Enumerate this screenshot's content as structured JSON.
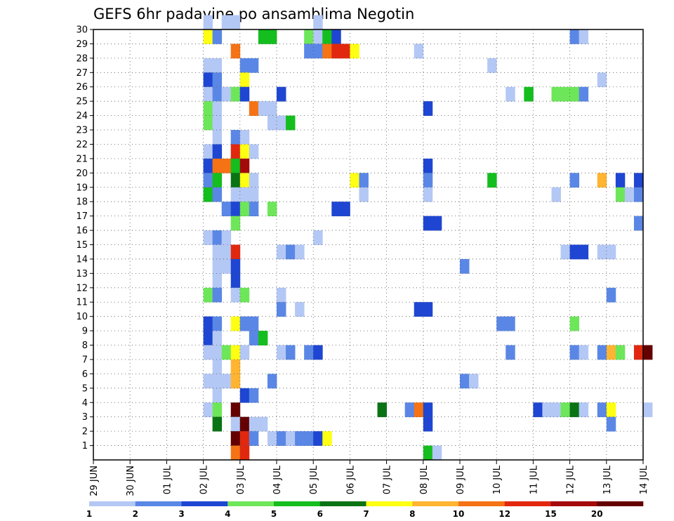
{
  "chart_data": {
    "type": "heatmap",
    "title": "GEFS 6hr padavine po ansamblima Negotin",
    "xlabel": "",
    "ylabel": "",
    "x_ticks": [
      "29 JUN",
      "30 JUN",
      "01 JUL",
      "02 JUL",
      "03 JUL",
      "04 JUL",
      "05 JUL",
      "06 JUL",
      "07 JUL",
      "08 JUL",
      "09 JUL",
      "10 JUL",
      "11 JUL",
      "12 JUL",
      "13 JUL",
      "14 JUL"
    ],
    "y_ticks": [
      "1",
      "2",
      "3",
      "4",
      "5",
      "6",
      "7",
      "8",
      "9",
      "10",
      "11",
      "12",
      "13",
      "14",
      "15",
      "16",
      "17",
      "18",
      "19",
      "20",
      "21",
      "22",
      "23",
      "24",
      "25",
      "26",
      "27",
      "28",
      "29",
      "30"
    ],
    "x_range": [
      "29 JUN 00Z",
      "14 JUL 00Z"
    ],
    "y_range": [
      0,
      30
    ],
    "time_step_hours": 6,
    "grid": true,
    "legend": {
      "position": "bottom",
      "levels": [
        "1",
        "2",
        "3",
        "4",
        "5",
        "6",
        "7",
        "8",
        "10",
        "12",
        "15",
        "20"
      ],
      "colors": [
        "#b4c8f5",
        "#5a87e6",
        "#1e46d2",
        "#6ee65a",
        "#14be1e",
        "#0a7314",
        "#ffff14",
        "#ffb432",
        "#f57314",
        "#e1280f",
        "#a50a0a",
        "#640000"
      ]
    },
    "cells": [
      [
        30,
        "02 JUL 00Z",
        1
      ],
      [
        30,
        "02 JUL 12Z",
        1
      ],
      [
        30,
        "02 JUL 18Z",
        1
      ],
      [
        30,
        "05 JUL 00Z",
        1
      ],
      [
        29,
        "02 JUL 00Z",
        7
      ],
      [
        29,
        "02 JUL 06Z",
        2
      ],
      [
        29,
        "03 JUL 12Z",
        5
      ],
      [
        29,
        "03 JUL 18Z",
        5
      ],
      [
        29,
        "04 JUL 18Z",
        4
      ],
      [
        29,
        "05 JUL 00Z",
        1
      ],
      [
        29,
        "05 JUL 06Z",
        5
      ],
      [
        29,
        "05 JUL 12Z",
        3
      ],
      [
        29,
        "12 JUL 00Z",
        2
      ],
      [
        29,
        "12 JUL 06Z",
        1
      ],
      [
        28,
        "02 JUL 18Z",
        10
      ],
      [
        28,
        "04 JUL 18Z",
        2
      ],
      [
        28,
        "05 JUL 00Z",
        2
      ],
      [
        28,
        "05 JUL 06Z",
        10
      ],
      [
        28,
        "05 JUL 12Z",
        12
      ],
      [
        28,
        "05 JUL 18Z",
        12
      ],
      [
        28,
        "06 JUL 00Z",
        7
      ],
      [
        28,
        "07 JUL 18Z",
        1
      ],
      [
        27,
        "02 JUL 00Z",
        1
      ],
      [
        27,
        "02 JUL 06Z",
        1
      ],
      [
        27,
        "03 JUL 00Z",
        2
      ],
      [
        27,
        "03 JUL 06Z",
        2
      ],
      [
        27,
        "09 JUL 18Z",
        1
      ],
      [
        26,
        "02 JUL 00Z",
        3
      ],
      [
        26,
        "02 JUL 06Z",
        2
      ],
      [
        26,
        "03 JUL 00Z",
        7
      ],
      [
        26,
        "12 JUL 18Z",
        1
      ],
      [
        25,
        "02 JUL 00Z",
        1
      ],
      [
        25,
        "02 JUL 06Z",
        2
      ],
      [
        25,
        "02 JUL 12Z",
        1
      ],
      [
        25,
        "02 JUL 18Z",
        4
      ],
      [
        25,
        "03 JUL 00Z",
        3
      ],
      [
        25,
        "04 JUL 00Z",
        3
      ],
      [
        25,
        "10 JUL 06Z",
        1
      ],
      [
        25,
        "10 JUL 18Z",
        5
      ],
      [
        25,
        "11 JUL 12Z",
        4
      ],
      [
        25,
        "11 JUL 18Z",
        4
      ],
      [
        25,
        "12 JUL 00Z",
        4
      ],
      [
        25,
        "12 JUL 06Z",
        2
      ],
      [
        24,
        "02 JUL 00Z",
        4
      ],
      [
        24,
        "02 JUL 06Z",
        1
      ],
      [
        24,
        "03 JUL 06Z",
        10
      ],
      [
        24,
        "03 JUL 12Z",
        1
      ],
      [
        24,
        "03 JUL 18Z",
        1
      ],
      [
        24,
        "08 JUL 00Z",
        3
      ],
      [
        23,
        "02 JUL 00Z",
        4
      ],
      [
        23,
        "02 JUL 06Z",
        1
      ],
      [
        23,
        "03 JUL 18Z",
        1
      ],
      [
        23,
        "04 JUL 00Z",
        1
      ],
      [
        23,
        "04 JUL 06Z",
        5
      ],
      [
        22,
        "02 JUL 06Z",
        1
      ],
      [
        22,
        "02 JUL 18Z",
        2
      ],
      [
        22,
        "03 JUL 00Z",
        1
      ],
      [
        21,
        "02 JUL 00Z",
        1
      ],
      [
        21,
        "02 JUL 06Z",
        3
      ],
      [
        21,
        "02 JUL 18Z",
        12
      ],
      [
        21,
        "03 JUL 00Z",
        7
      ],
      [
        21,
        "03 JUL 06Z",
        1
      ],
      [
        20,
        "02 JUL 00Z",
        3
      ],
      [
        20,
        "02 JUL 06Z",
        10
      ],
      [
        20,
        "02 JUL 12Z",
        10
      ],
      [
        20,
        "02 JUL 18Z",
        5
      ],
      [
        20,
        "03 JUL 00Z",
        15
      ],
      [
        20,
        "08 JUL 00Z",
        3
      ],
      [
        19,
        "02 JUL 00Z",
        2
      ],
      [
        19,
        "02 JUL 06Z",
        5
      ],
      [
        19,
        "02 JUL 18Z",
        6
      ],
      [
        19,
        "03 JUL 00Z",
        7
      ],
      [
        19,
        "03 JUL 06Z",
        1
      ],
      [
        19,
        "06 JUL 00Z",
        7
      ],
      [
        19,
        "06 JUL 06Z",
        2
      ],
      [
        19,
        "08 JUL 00Z",
        2
      ],
      [
        19,
        "09 JUL 18Z",
        5
      ],
      [
        19,
        "12 JUL 00Z",
        2
      ],
      [
        19,
        "12 JUL 18Z",
        8
      ],
      [
        19,
        "13 JUL 06Z",
        3
      ],
      [
        19,
        "13 JUL 18Z",
        3
      ],
      [
        18,
        "02 JUL 00Z",
        5
      ],
      [
        18,
        "02 JUL 06Z",
        2
      ],
      [
        18,
        "02 JUL 18Z",
        1
      ],
      [
        18,
        "03 JUL 00Z",
        1
      ],
      [
        18,
        "03 JUL 06Z",
        1
      ],
      [
        18,
        "06 JUL 06Z",
        1
      ],
      [
        18,
        "08 JUL 00Z",
        1
      ],
      [
        18,
        "11 JUL 12Z",
        1
      ],
      [
        18,
        "13 JUL 06Z",
        4
      ],
      [
        18,
        "13 JUL 12Z",
        1
      ],
      [
        18,
        "13 JUL 18Z",
        2
      ],
      [
        17,
        "02 JUL 12Z",
        2
      ],
      [
        17,
        "02 JUL 18Z",
        3
      ],
      [
        17,
        "03 JUL 00Z",
        4
      ],
      [
        17,
        "03 JUL 06Z",
        2
      ],
      [
        17,
        "03 JUL 18Z",
        4
      ],
      [
        17,
        "05 JUL 12Z",
        3
      ],
      [
        17,
        "05 JUL 18Z",
        3
      ],
      [
        16,
        "02 JUL 18Z",
        4
      ],
      [
        16,
        "08 JUL 00Z",
        3
      ],
      [
        16,
        "08 JUL 06Z",
        3
      ],
      [
        16,
        "13 JUL 18Z",
        2
      ],
      [
        15,
        "02 JUL 00Z",
        1
      ],
      [
        15,
        "02 JUL 06Z",
        2
      ],
      [
        15,
        "02 JUL 12Z",
        1
      ],
      [
        15,
        "05 JUL 00Z",
        1
      ],
      [
        14,
        "02 JUL 06Z",
        1
      ],
      [
        14,
        "02 JUL 12Z",
        1
      ],
      [
        14,
        "02 JUL 18Z",
        12
      ],
      [
        14,
        "04 JUL 00Z",
        1
      ],
      [
        14,
        "04 JUL 06Z",
        2
      ],
      [
        14,
        "04 JUL 12Z",
        1
      ],
      [
        14,
        "11 JUL 18Z",
        1
      ],
      [
        14,
        "12 JUL 00Z",
        3
      ],
      [
        14,
        "12 JUL 06Z",
        3
      ],
      [
        14,
        "12 JUL 18Z",
        1
      ],
      [
        14,
        "13 JUL 00Z",
        1
      ],
      [
        13,
        "02 JUL 06Z",
        1
      ],
      [
        13,
        "02 JUL 12Z",
        1
      ],
      [
        13,
        "02 JUL 18Z",
        3
      ],
      [
        13,
        "09 JUL 00Z",
        2
      ],
      [
        12,
        "02 JUL 06Z",
        1
      ],
      [
        12,
        "02 JUL 18Z",
        3
      ],
      [
        11,
        "02 JUL 00Z",
        4
      ],
      [
        11,
        "02 JUL 06Z",
        2
      ],
      [
        11,
        "02 JUL 18Z",
        1
      ],
      [
        11,
        "03 JUL 00Z",
        4
      ],
      [
        11,
        "04 JUL 00Z",
        1
      ],
      [
        11,
        "13 JUL 00Z",
        2
      ],
      [
        10,
        "04 JUL 00Z",
        2
      ],
      [
        10,
        "04 JUL 12Z",
        1
      ],
      [
        10,
        "07 JUL 18Z",
        3
      ],
      [
        10,
        "08 JUL 00Z",
        3
      ],
      [
        9,
        "02 JUL 00Z",
        3
      ],
      [
        9,
        "02 JUL 06Z",
        2
      ],
      [
        9,
        "02 JUL 18Z",
        7
      ],
      [
        9,
        "03 JUL 00Z",
        2
      ],
      [
        9,
        "03 JUL 06Z",
        2
      ],
      [
        9,
        "10 JUL 00Z",
        2
      ],
      [
        9,
        "10 JUL 06Z",
        2
      ],
      [
        9,
        "12 JUL 00Z",
        4
      ],
      [
        8,
        "02 JUL 00Z",
        3
      ],
      [
        8,
        "02 JUL 06Z",
        1
      ],
      [
        8,
        "03 JUL 06Z",
        2
      ],
      [
        8,
        "03 JUL 12Z",
        5
      ],
      [
        7,
        "02 JUL 00Z",
        1
      ],
      [
        7,
        "02 JUL 06Z",
        1
      ],
      [
        7,
        "02 JUL 12Z",
        4
      ],
      [
        7,
        "02 JUL 18Z",
        7
      ],
      [
        7,
        "03 JUL 00Z",
        1
      ],
      [
        7,
        "04 JUL 00Z",
        1
      ],
      [
        7,
        "04 JUL 06Z",
        2
      ],
      [
        7,
        "04 JUL 18Z",
        2
      ],
      [
        7,
        "05 JUL 00Z",
        3
      ],
      [
        7,
        "10 JUL 06Z",
        2
      ],
      [
        7,
        "12 JUL 00Z",
        2
      ],
      [
        7,
        "12 JUL 06Z",
        1
      ],
      [
        7,
        "12 JUL 18Z",
        2
      ],
      [
        7,
        "13 JUL 00Z",
        8
      ],
      [
        7,
        "13 JUL 06Z",
        4
      ],
      [
        7,
        "13 JUL 18Z",
        12
      ],
      [
        7,
        "14 JUL 00Z",
        20
      ],
      [
        6,
        "02 JUL 06Z",
        1
      ],
      [
        6,
        "02 JUL 18Z",
        8
      ],
      [
        5,
        "02 JUL 00Z",
        1
      ],
      [
        5,
        "02 JUL 06Z",
        1
      ],
      [
        5,
        "02 JUL 12Z",
        1
      ],
      [
        5,
        "02 JUL 18Z",
        8
      ],
      [
        5,
        "03 JUL 18Z",
        2
      ],
      [
        5,
        "09 JUL 00Z",
        2
      ],
      [
        5,
        "09 JUL 06Z",
        1
      ],
      [
        4,
        "02 JUL 06Z",
        1
      ],
      [
        4,
        "03 JUL 00Z",
        3
      ],
      [
        4,
        "03 JUL 06Z",
        2
      ],
      [
        3,
        "02 JUL 00Z",
        1
      ],
      [
        3,
        "02 JUL 06Z",
        4
      ],
      [
        3,
        "02 JUL 18Z",
        20
      ],
      [
        3,
        "06 JUL 18Z",
        6
      ],
      [
        3,
        "07 JUL 12Z",
        2
      ],
      [
        3,
        "07 JUL 18Z",
        10
      ],
      [
        3,
        "08 JUL 00Z",
        3
      ],
      [
        3,
        "11 JUL 00Z",
        3
      ],
      [
        3,
        "11 JUL 06Z",
        1
      ],
      [
        3,
        "11 JUL 12Z",
        1
      ],
      [
        3,
        "11 JUL 18Z",
        4
      ],
      [
        3,
        "12 JUL 00Z",
        6
      ],
      [
        3,
        "12 JUL 06Z",
        1
      ],
      [
        3,
        "12 JUL 18Z",
        2
      ],
      [
        3,
        "13 JUL 00Z",
        7
      ],
      [
        3,
        "14 JUL 00Z",
        1
      ],
      [
        2,
        "02 JUL 06Z",
        6
      ],
      [
        2,
        "02 JUL 18Z",
        1
      ],
      [
        2,
        "03 JUL 00Z",
        20
      ],
      [
        2,
        "03 JUL 06Z",
        1
      ],
      [
        2,
        "03 JUL 12Z",
        1
      ],
      [
        2,
        "08 JUL 00Z",
        3
      ],
      [
        2,
        "13 JUL 00Z",
        2
      ],
      [
        1,
        "02 JUL 18Z",
        20
      ],
      [
        1,
        "03 JUL 00Z",
        12
      ],
      [
        1,
        "03 JUL 06Z",
        2
      ],
      [
        1,
        "03 JUL 18Z",
        1
      ],
      [
        1,
        "04 JUL 00Z",
        2
      ],
      [
        1,
        "04 JUL 06Z",
        1
      ],
      [
        1,
        "04 JUL 12Z",
        2
      ],
      [
        1,
        "04 JUL 18Z",
        2
      ],
      [
        1,
        "05 JUL 00Z",
        3
      ],
      [
        1,
        "05 JUL 06Z",
        7
      ],
      [
        0,
        "02 JUL 18Z",
        10
      ],
      [
        0,
        "03 JUL 00Z",
        12
      ],
      [
        0,
        "08 JUL 00Z",
        5
      ],
      [
        0,
        "08 JUL 06Z",
        1
      ]
    ]
  }
}
